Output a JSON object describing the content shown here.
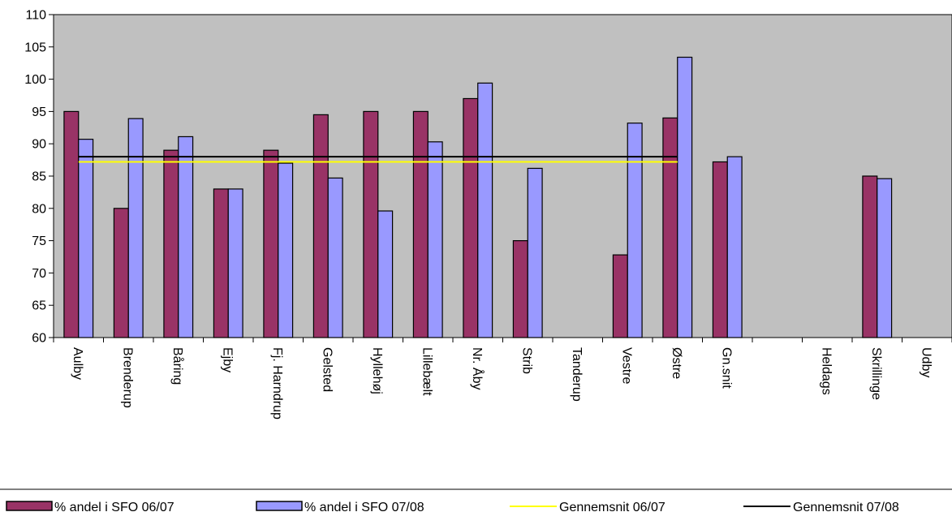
{
  "chart_data": {
    "type": "bar",
    "categories": [
      "Aulby",
      "Brenderup",
      "Båring",
      "Ejby",
      "Fj. Harndrup",
      "Gelsted",
      "Hyllehøj",
      "Lillebælt",
      "Nr. Åby",
      "Strib",
      "Tanderup",
      "Vestre",
      "Østre",
      "Gn.snit",
      "",
      "Heldags",
      "Skrillinge",
      "Udby"
    ],
    "series": [
      {
        "name": "% andel i SFO 06/07",
        "color": "#993366",
        "values": [
          95,
          80,
          89,
          83,
          89,
          94.5,
          95,
          95,
          97,
          75,
          null,
          72.8,
          94,
          87.2,
          null,
          null,
          85,
          null
        ]
      },
      {
        "name": "% andel i SFO 07/08",
        "color": "#9999ff",
        "values": [
          90.7,
          93.9,
          91.1,
          83,
          87,
          84.7,
          79.6,
          90.3,
          99.4,
          86.2,
          null,
          93.2,
          103.4,
          88,
          null,
          null,
          84.6,
          null
        ]
      }
    ],
    "lines": [
      {
        "name": "Gennemsnit 06/07",
        "color": "#ffff00",
        "value": 87.2,
        "from_category": "Aulby",
        "to_category": "Østre"
      },
      {
        "name": "Gennemsnit 07/08",
        "color": "#000000",
        "value": 88,
        "from_category": "Aulby",
        "to_category": "Østre"
      }
    ],
    "ylim": [
      60,
      110
    ],
    "yticks": [
      60,
      65,
      70,
      75,
      80,
      85,
      90,
      95,
      100,
      105,
      110
    ],
    "plot_background": "#c0c0c0",
    "grid": false,
    "legend_position": "bottom"
  }
}
